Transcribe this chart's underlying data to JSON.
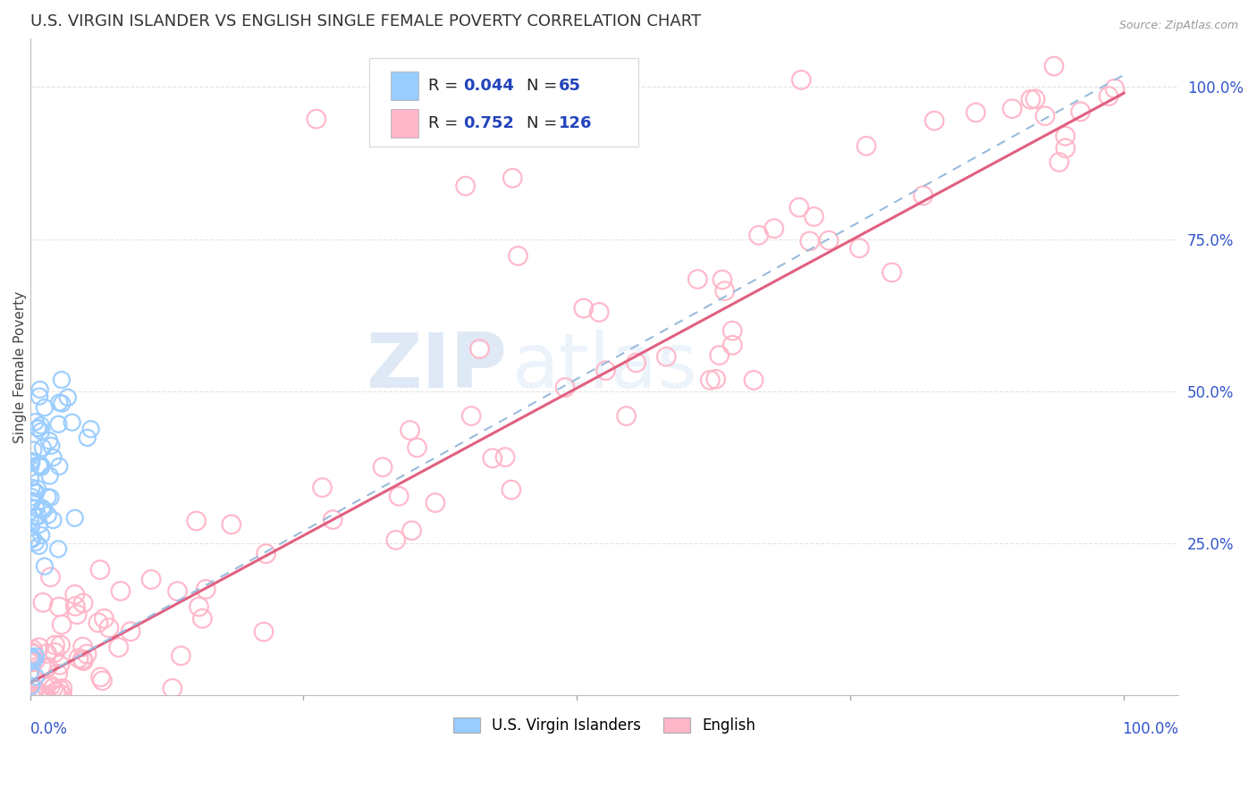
{
  "title": "U.S. VIRGIN ISLANDER VS ENGLISH SINGLE FEMALE POVERTY CORRELATION CHART",
  "source": "Source: ZipAtlas.com",
  "ylabel": "Single Female Poverty",
  "right_yticks": [
    "100.0%",
    "75.0%",
    "50.0%",
    "25.0%"
  ],
  "right_ytick_vals": [
    1.0,
    0.75,
    0.5,
    0.25
  ],
  "watermark_zip": "ZIP",
  "watermark_atlas": "atlas",
  "legend_r1": "R = 0.044",
  "legend_n1": "N =  65",
  "legend_r2": "R = 0.752",
  "legend_n2": "N = 126",
  "blue_scatter_color": "#99CCFF",
  "pink_scatter_color": "#FFB6C8",
  "blue_line_color": "#99BBDD",
  "pink_line_color": "#E06080",
  "title_color": "#333333",
  "axis_label_color": "#3355CC",
  "legend_value_color": "#2244BB",
  "background_color": "#FFFFFF",
  "grid_color": "#DDDDDD",
  "pink_slope": 0.97,
  "pink_intercept": 0.02,
  "blue_slope": 1.0,
  "blue_intercept": 0.02
}
